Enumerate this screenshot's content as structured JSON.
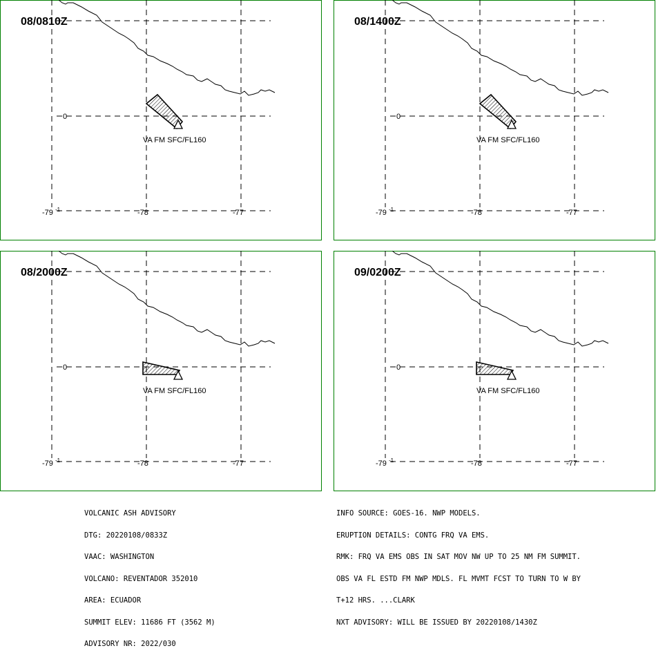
{
  "panels": [
    {
      "time_label": "08/0810Z",
      "ash_label": "VA FM SFC/FL160",
      "shape": "nw"
    },
    {
      "time_label": "08/1400Z",
      "ash_label": "VA FM SFC/FL160",
      "shape": "nw"
    },
    {
      "time_label": "08/2000Z",
      "ash_label": "VA FM SFC/FL160",
      "shape": "w"
    },
    {
      "time_label": "09/0200Z",
      "ash_label": "VA FM SFC/FL160",
      "shape": "w"
    }
  ],
  "axes": {
    "lat_zero_label": "0",
    "lat_minus_one_label": "-1",
    "lon_labels": [
      "-79",
      "-78",
      "-77"
    ]
  },
  "advisory_left": [
    "VOLCANIC ASH ADVISORY",
    "DTG: 20220108/0833Z",
    "VAAC: WASHINGTON",
    "VOLCANO: REVENTADOR 352010",
    "AREA: ECUADOR",
    "SUMMIT ELEV: 11686 FT (3562 M)",
    "ADVISORY NR: 2022/030"
  ],
  "advisory_right": [
    "INFO SOURCE: GOES-16. NWP MODELS.",
    "ERUPTION DETAILS: CONTG FRQ VA EMS.",
    "RMK: FRQ VA EMS OBS IN SAT MOV NW UP TO 25 NM FM SUMMIT.",
    "OBS VA FL ESTD FM NWP MDLS. FL MVMT FCST TO TURN TO W BY",
    "T+12 HRS. ...CLARK",
    "NXT ADVISORY: WILL BE ISSUED BY 20220108/1430Z"
  ],
  "colors": {
    "panel_border": "#008000",
    "background": "#ffffff",
    "lines": "#000000"
  }
}
